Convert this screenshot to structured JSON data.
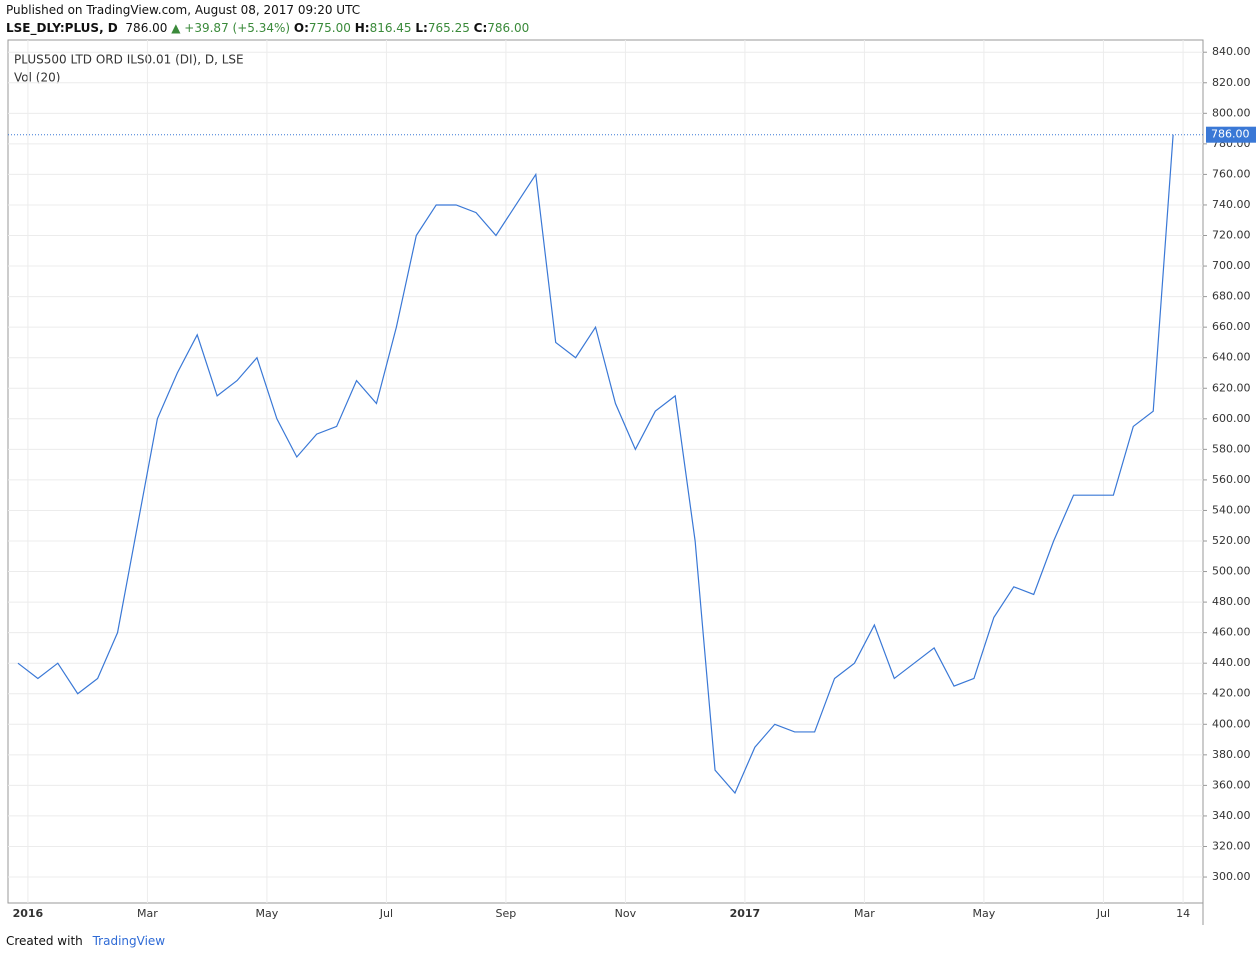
{
  "header": {
    "published": "Published on TradingView.com, August 08, 2017 09:20 UTC",
    "symbol": "LSE_DLY:PLUS, D",
    "price": "786.00",
    "change": "▲ +39.87 (+5.34%)",
    "o_label": "O:",
    "o": "775.00",
    "h_label": "H:",
    "h": "816.45",
    "l_label": "L:",
    "l": "765.25",
    "c_label": "C:",
    "c": "786.00"
  },
  "footer": {
    "created": "Created with",
    "brand": "TradingView"
  },
  "chart_data": {
    "type": "line",
    "legend_title": "PLUS500 LTD ORD ILS0.01 (DI), D, LSE",
    "legend_volume": "Vol (20)",
    "categories": [
      null,
      "2016",
      null,
      null,
      null,
      null,
      null,
      "Mar",
      null,
      null,
      null,
      null,
      null,
      "May",
      null,
      null,
      null,
      null,
      null,
      "Jul",
      null,
      null,
      null,
      null,
      null,
      "Sep",
      null,
      null,
      null,
      null,
      null,
      "Nov",
      null,
      null,
      null,
      null,
      null,
      "2017",
      null,
      null,
      null,
      null,
      null,
      "Mar",
      null,
      null,
      null,
      null,
      null,
      "May",
      null,
      null,
      null,
      null,
      null,
      "Jul",
      null,
      null,
      null,
      "14"
    ],
    "series": [
      {
        "name": "PLUS500 LTD ORD ILS0.01 (DI)",
        "color": "#3a78d6",
        "values": [
          440,
          430,
          440,
          420,
          430,
          460,
          530,
          600,
          630,
          655,
          615,
          625,
          640,
          600,
          575,
          590,
          595,
          625,
          610,
          660,
          720,
          740,
          740,
          735,
          720,
          740,
          760,
          650,
          640,
          660,
          610,
          580,
          605,
          615,
          520,
          370,
          355,
          385,
          400,
          395,
          395,
          430,
          440,
          465,
          430,
          440,
          450,
          425,
          430,
          470,
          490,
          485,
          520,
          550,
          550,
          550,
          595,
          605,
          786,
          null
        ]
      }
    ],
    "last_value": {
      "value": 786,
      "label": "786.00"
    },
    "ylim": [
      283,
      848
    ],
    "yticks": [
      {
        "value": 300,
        "label": "300.00"
      },
      {
        "value": 320,
        "label": "320.00"
      },
      {
        "value": 340,
        "label": "340.00"
      },
      {
        "value": 360,
        "label": "360.00"
      },
      {
        "value": 380,
        "label": "380.00"
      },
      {
        "value": 400,
        "label": "400.00"
      },
      {
        "value": 420,
        "label": "420.00"
      },
      {
        "value": 440,
        "label": "440.00"
      },
      {
        "value": 460,
        "label": "460.00"
      },
      {
        "value": 480,
        "label": "480.00"
      },
      {
        "value": 500,
        "label": "500.00"
      },
      {
        "value": 520,
        "label": "520.00"
      },
      {
        "value": 540,
        "label": "540.00"
      },
      {
        "value": 560,
        "label": "560.00"
      },
      {
        "value": 580,
        "label": "580.00"
      },
      {
        "value": 600,
        "label": "600.00"
      },
      {
        "value": 620,
        "label": "620.00"
      },
      {
        "value": 640,
        "label": "640.00"
      },
      {
        "value": 660,
        "label": "660.00"
      },
      {
        "value": 680,
        "label": "680.00"
      },
      {
        "value": 700,
        "label": "700.00"
      },
      {
        "value": 720,
        "label": "720.00"
      },
      {
        "value": 740,
        "label": "740.00"
      },
      {
        "value": 760,
        "label": "760.00"
      },
      {
        "value": 780,
        "label": "780.00"
      },
      {
        "value": 800,
        "label": "800.00"
      },
      {
        "value": 820,
        "label": "820.00"
      },
      {
        "value": 840,
        "label": "840.00"
      }
    ],
    "grid": true
  }
}
